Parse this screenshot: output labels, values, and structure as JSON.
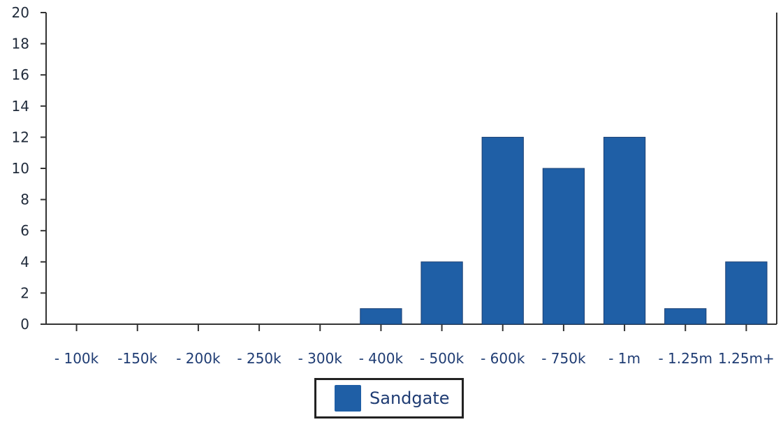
{
  "chart_data": {
    "type": "bar",
    "categories": [
      "- 100k",
      "-150k",
      "- 200k",
      "- 250k",
      "- 300k",
      "- 400k",
      "- 500k",
      "- 600k",
      "- 750k",
      "- 1m",
      "- 1.25m",
      "1.25m+"
    ],
    "series": [
      {
        "name": "Sandgate",
        "values": [
          0,
          0,
          0,
          0,
          0,
          1,
          4,
          12,
          10,
          12,
          1,
          4
        ],
        "color": "#1f5fa6"
      }
    ],
    "ylim": [
      0,
      20
    ],
    "yticks": [
      0,
      2,
      4,
      6,
      8,
      10,
      12,
      14,
      16,
      18,
      20
    ],
    "grid": false,
    "legend_position": "bottom-center"
  },
  "legend": {
    "items": [
      {
        "label": "Sandgate",
        "color": "#1f5fa6"
      }
    ]
  }
}
